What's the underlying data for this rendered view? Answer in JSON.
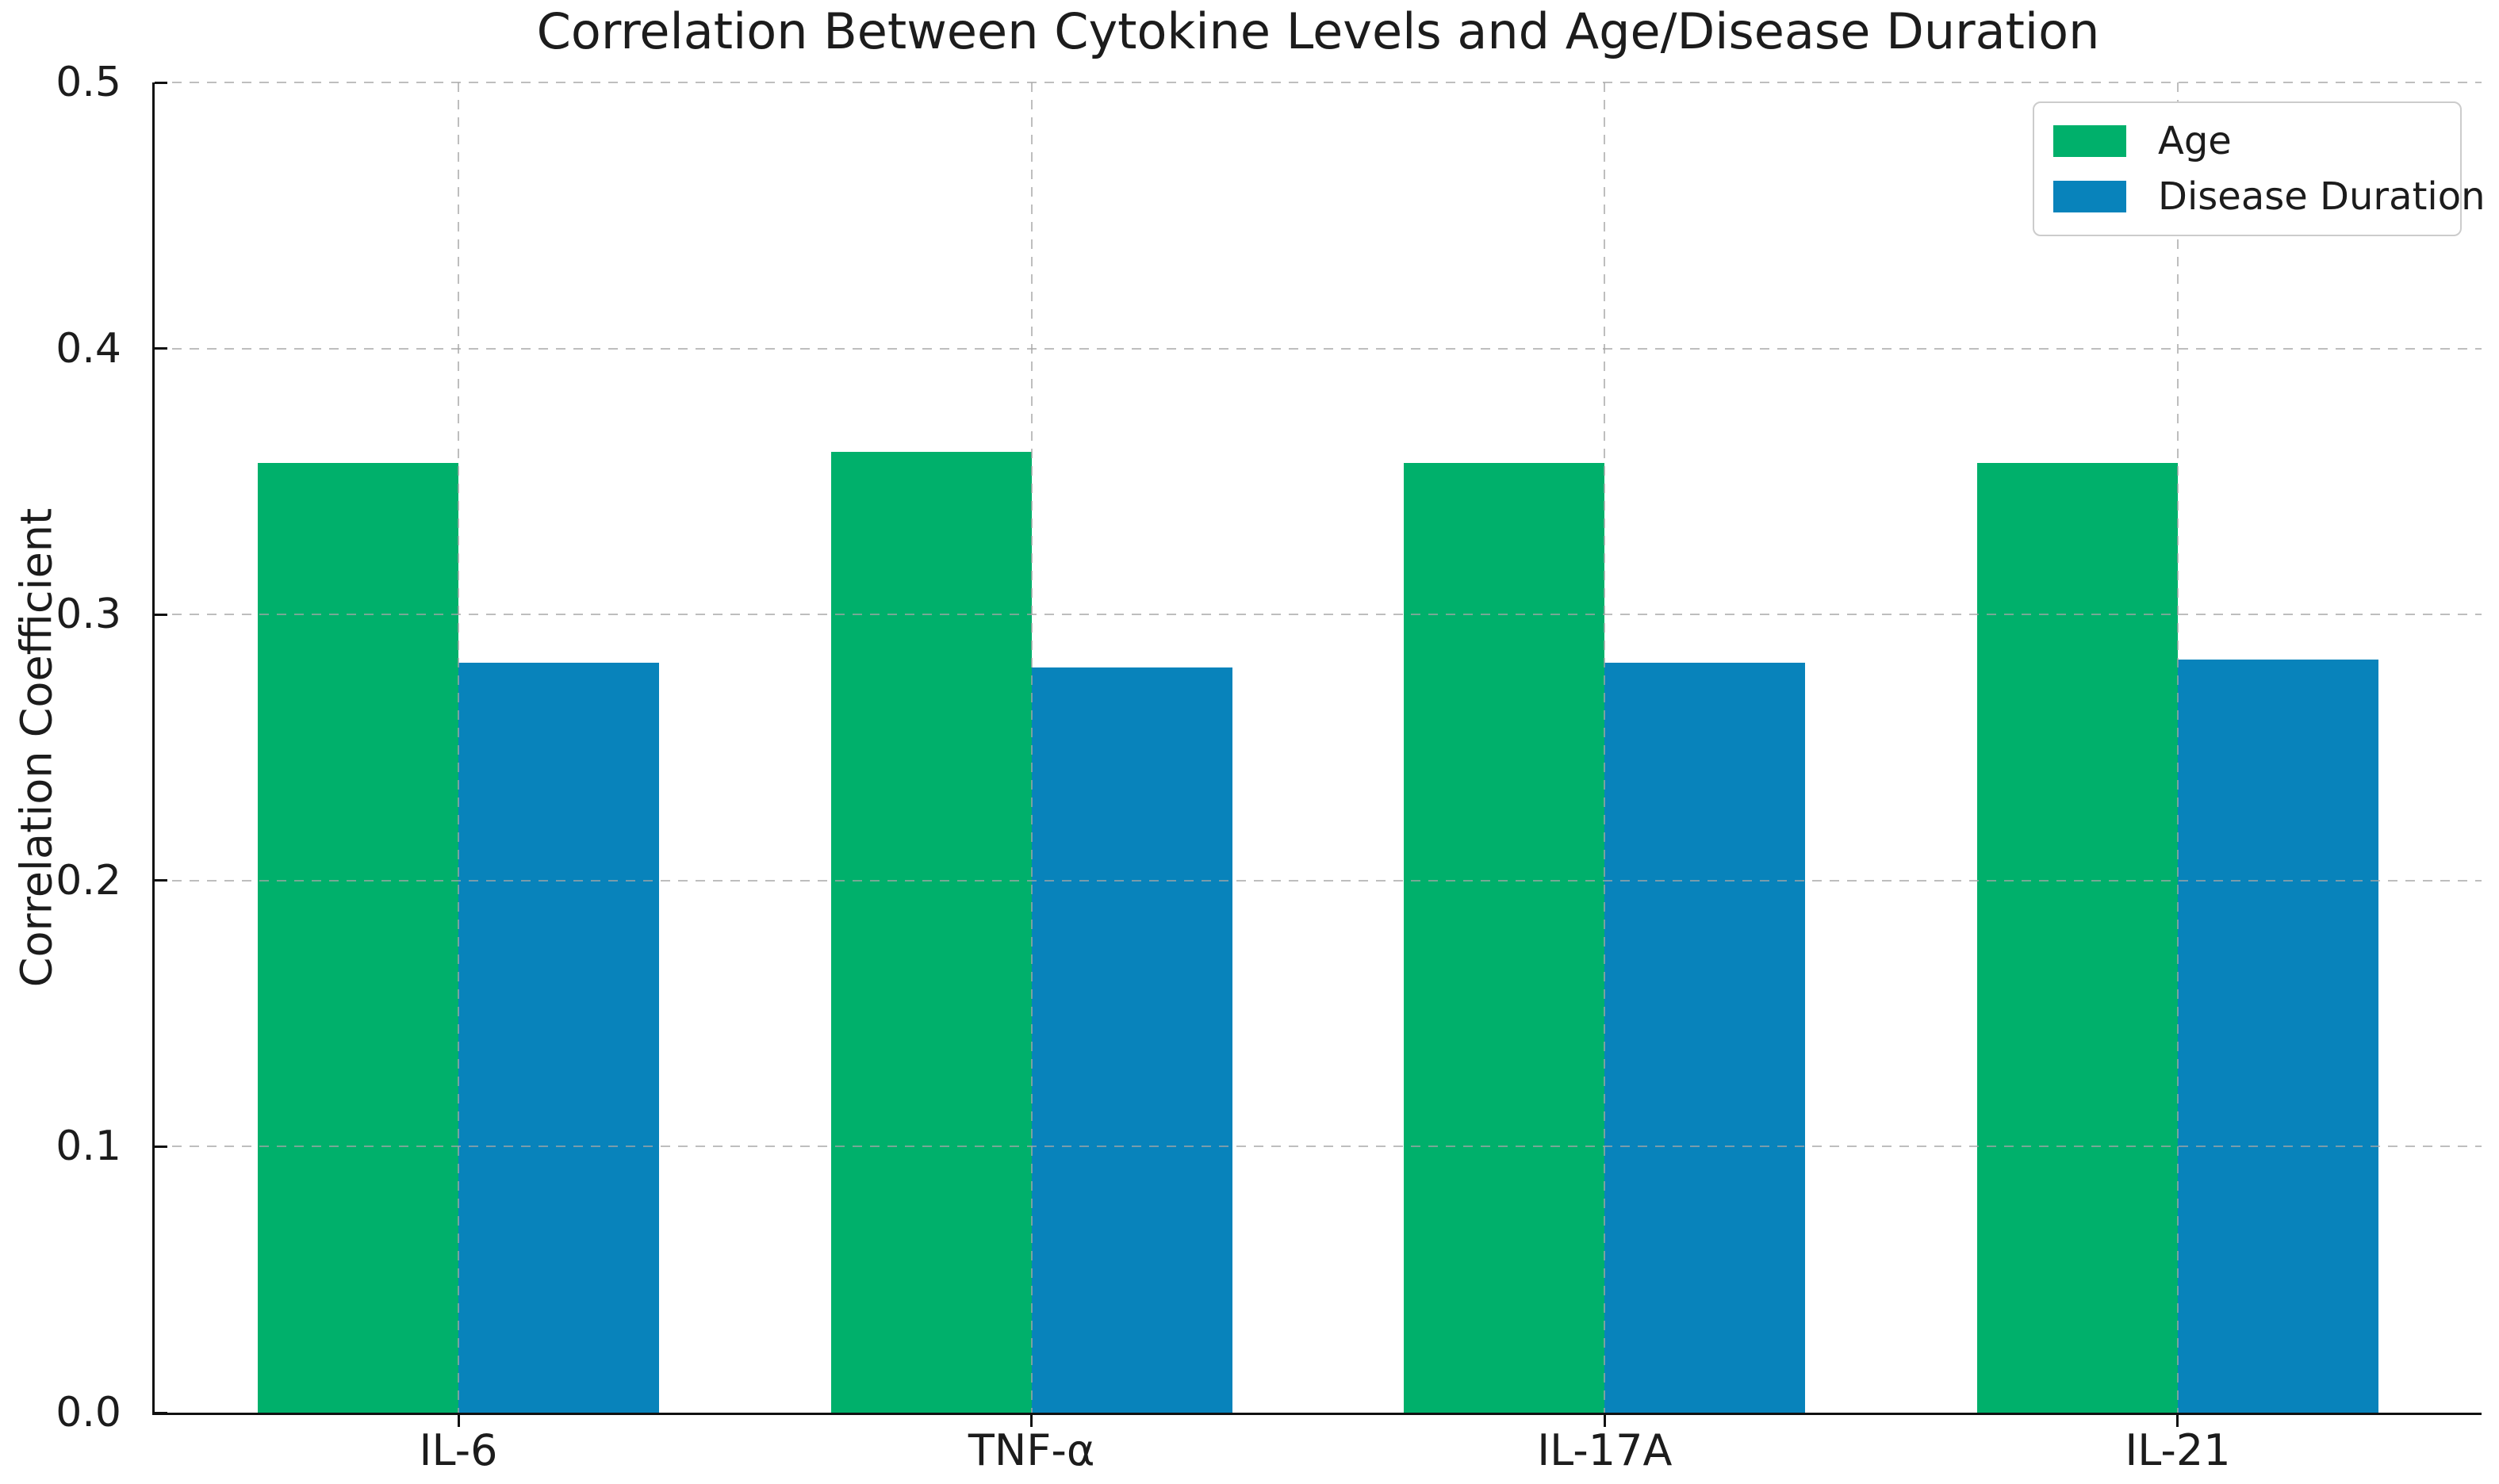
{
  "chart_data": {
    "type": "bar",
    "title": "Correlation Between Cytokine Levels and Age/Disease Duration",
    "xlabel": "",
    "ylabel": "Correlation Coefficient",
    "categories": [
      "IL-6",
      "TNF-α",
      "IL-17A",
      "IL-21"
    ],
    "series": [
      {
        "name": "Age",
        "color": "#00B06B",
        "values": [
          0.357,
          0.361,
          0.357,
          0.357
        ]
      },
      {
        "name": "Disease Duration",
        "color": "#0883BB",
        "values": [
          0.282,
          0.28,
          0.282,
          0.283
        ]
      }
    ],
    "ylim": [
      0,
      0.5
    ],
    "yticks": [
      0.0,
      0.1,
      0.2,
      0.3,
      0.4,
      0.5
    ],
    "ytick_labels": [
      "0.0",
      "0.1",
      "0.2",
      "0.3",
      "0.4",
      "0.5"
    ],
    "bar_width_fraction": 0.35,
    "grid": {
      "horizontal": true,
      "vertical": true,
      "style": "dashed",
      "color": "#c6c6c6"
    },
    "legend": {
      "position": "upper right"
    },
    "colors": {
      "spine": "#111111",
      "text": "#1c1c1c",
      "background": "#ffffff"
    }
  }
}
